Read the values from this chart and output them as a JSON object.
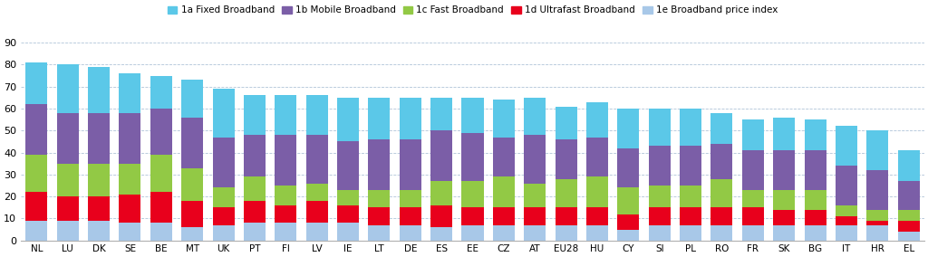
{
  "categories": [
    "NL",
    "LU",
    "DK",
    "SE",
    "BE",
    "MT",
    "UK",
    "PT",
    "FI",
    "LV",
    "IE",
    "LT",
    "DE",
    "ES",
    "EE",
    "CZ",
    "AT",
    "EU28",
    "HU",
    "CY",
    "SI",
    "PL",
    "RO",
    "FR",
    "SK",
    "BG",
    "IT",
    "HR",
    "EL"
  ],
  "series": {
    "1e Broadband price index": [
      9,
      9,
      9,
      8,
      8,
      6,
      7,
      8,
      8,
      8,
      8,
      7,
      7,
      6,
      7,
      7,
      7,
      7,
      7,
      5,
      7,
      7,
      7,
      7,
      7,
      7,
      7,
      7,
      4
    ],
    "1d Ultrafast Broadband": [
      13,
      11,
      11,
      13,
      14,
      12,
      8,
      10,
      8,
      10,
      8,
      8,
      8,
      10,
      8,
      8,
      8,
      8,
      8,
      7,
      8,
      8,
      8,
      8,
      7,
      7,
      4,
      2,
      5
    ],
    "1c Fast Broadband": [
      17,
      15,
      15,
      14,
      17,
      15,
      9,
      11,
      9,
      8,
      7,
      8,
      8,
      11,
      12,
      14,
      11,
      13,
      14,
      12,
      10,
      10,
      13,
      8,
      9,
      9,
      5,
      5,
      5
    ],
    "1b Mobile Broadband": [
      23,
      23,
      23,
      23,
      21,
      23,
      23,
      19,
      23,
      22,
      22,
      23,
      23,
      23,
      22,
      18,
      22,
      18,
      18,
      18,
      18,
      18,
      16,
      18,
      18,
      18,
      18,
      18,
      13
    ],
    "1a Fixed Broadband": [
      19,
      22,
      21,
      18,
      15,
      17,
      22,
      18,
      18,
      18,
      20,
      19,
      19,
      15,
      16,
      17,
      17,
      15,
      16,
      18,
      17,
      17,
      14,
      14,
      15,
      14,
      18,
      18,
      14
    ]
  },
  "colors": {
    "1e Broadband price index": "#a8c8e8",
    "1d Ultrafast Broadband": "#e8001c",
    "1c Fast Broadband": "#92c945",
    "1b Mobile Broadband": "#7b5ea7",
    "1a Fixed Broadband": "#5bc8e8"
  },
  "ylim": [
    0,
    90
  ],
  "yticks": [
    0,
    10,
    20,
    30,
    40,
    50,
    60,
    70,
    80,
    90
  ],
  "stack_order": [
    "1e Broadband price index",
    "1d Ultrafast Broadband",
    "1c Fast Broadband",
    "1b Mobile Broadband",
    "1a Fixed Broadband"
  ],
  "legend_order": [
    "1a Fixed Broadband",
    "1b Mobile Broadband",
    "1c Fast Broadband",
    "1d Ultrafast Broadband",
    "1e Broadband price index"
  ]
}
